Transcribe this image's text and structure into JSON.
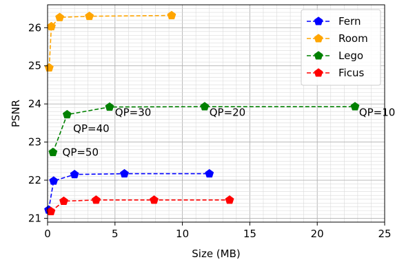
{
  "chart_data": {
    "type": "line",
    "xlabel": "Size (MB)",
    "ylabel": "PSNR",
    "xlim": [
      0,
      25
    ],
    "ylim": [
      20.9,
      26.6
    ],
    "xticks": [
      0,
      5,
      10,
      15,
      20,
      25
    ],
    "yticks": [
      21,
      22,
      23,
      24,
      25,
      26
    ],
    "grid": "major and minor",
    "legend_position": "top-right",
    "series": [
      {
        "name": "Fern",
        "color": "#0000ff",
        "marker": "pentagon",
        "line": "dashed",
        "x": [
          0.08,
          0.45,
          2.0,
          5.7,
          12.0
        ],
        "y": [
          21.22,
          21.98,
          22.15,
          22.17,
          22.17
        ]
      },
      {
        "name": "Room",
        "color": "#ffa500",
        "marker": "pentagon",
        "line": "dashed",
        "x": [
          0.12,
          0.28,
          0.9,
          3.1,
          9.2
        ],
        "y": [
          24.95,
          26.03,
          26.27,
          26.3,
          26.32
        ]
      },
      {
        "name": "Lego",
        "color": "#008000",
        "marker": "pentagon",
        "line": "dashed",
        "x": [
          0.4,
          1.45,
          4.6,
          11.65,
          22.8
        ],
        "y": [
          22.73,
          23.72,
          23.92,
          23.93,
          23.93
        ]
      },
      {
        "name": "Ficus",
        "color": "#ff0000",
        "marker": "pentagon",
        "line": "dashed",
        "x": [
          0.25,
          1.2,
          3.6,
          7.9,
          13.5
        ],
        "y": [
          21.18,
          21.45,
          21.48,
          21.48,
          21.48
        ]
      }
    ],
    "annotations": [
      {
        "text": "QP=50",
        "x": 1.1,
        "y": 22.73
      },
      {
        "text": "QP=40",
        "x": 1.9,
        "y": 23.35
      },
      {
        "text": "QP=30",
        "x": 5.0,
        "y": 23.78
      },
      {
        "text": "QP=20",
        "x": 12.0,
        "y": 23.78
      },
      {
        "text": "QP=10",
        "x": 23.1,
        "y": 23.78
      }
    ]
  }
}
